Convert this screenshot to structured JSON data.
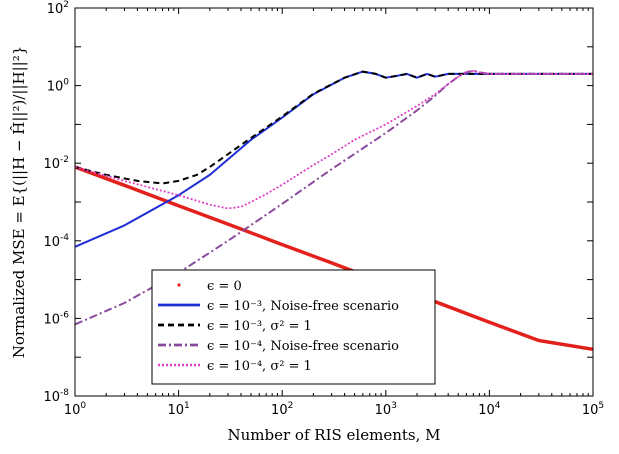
{
  "chart_data": {
    "type": "line",
    "xlabel": "Number of RIS elements, M",
    "ylabel": "Normalized MSE = E{(||H − Ĥ||²)/||H||²}",
    "xscale": "log",
    "yscale": "log",
    "xlim": [
      1,
      100000
    ],
    "ylim": [
      1e-08,
      100
    ],
    "grid": false,
    "legend_position": "bottom-center",
    "x_ticks": [
      {
        "base": "10",
        "exp": "0",
        "value": 1
      },
      {
        "base": "10",
        "exp": "1",
        "value": 10
      },
      {
        "base": "10",
        "exp": "2",
        "value": 100
      },
      {
        "base": "10",
        "exp": "3",
        "value": 1000
      },
      {
        "base": "10",
        "exp": "4",
        "value": 10000
      },
      {
        "base": "10",
        "exp": "5",
        "value": 100000
      }
    ],
    "y_ticks": [
      {
        "base": "10",
        "exp": "-8",
        "value": 1e-08
      },
      {
        "base": "10",
        "exp": "-6",
        "value": 1e-06
      },
      {
        "base": "10",
        "exp": "-4",
        "value": 0.0001
      },
      {
        "base": "10",
        "exp": "-2",
        "value": 0.01
      },
      {
        "base": "10",
        "exp": "0",
        "value": 1
      },
      {
        "base": "10",
        "exp": "2",
        "value": 100
      }
    ],
    "series": [
      {
        "name": "ϵ = 0",
        "color": "#e3201b",
        "style": "dotted-thick",
        "points": [
          [
            1,
            0.008
          ],
          [
            3,
            0.0027
          ],
          [
            10,
            0.0008
          ],
          [
            30,
            0.00027
          ],
          [
            100,
            8e-05
          ],
          [
            300,
            2.7e-05
          ],
          [
            1000,
            8e-06
          ],
          [
            3000,
            2.7e-06
          ],
          [
            10000,
            8e-07
          ],
          [
            30000,
            2.7e-07
          ],
          [
            100000,
            1.6e-07
          ]
        ]
      },
      {
        "name": "ϵ = 10⁻³, Noise-free scenario",
        "color": "#1f2fd6",
        "style": "solid",
        "points": [
          [
            1,
            7e-05
          ],
          [
            3,
            0.00025
          ],
          [
            10,
            0.0015
          ],
          [
            20,
            0.005
          ],
          [
            50,
            0.04
          ],
          [
            100,
            0.15
          ],
          [
            200,
            0.6
          ],
          [
            400,
            1.6
          ],
          [
            600,
            2.3
          ],
          [
            800,
            2.0
          ],
          [
            1000,
            1.6
          ],
          [
            1300,
            1.8
          ],
          [
            1600,
            2.0
          ],
          [
            2000,
            1.6
          ],
          [
            2500,
            2.0
          ],
          [
            3000,
            1.7
          ],
          [
            4000,
            2.0
          ],
          [
            6000,
            2.0
          ],
          [
            10000,
            2.0
          ],
          [
            100000,
            2.0
          ]
        ]
      },
      {
        "name": "ϵ = 10⁻³, σ² = 1",
        "color": "#000000",
        "style": "dashed",
        "points": [
          [
            1,
            0.008
          ],
          [
            2,
            0.005
          ],
          [
            4,
            0.0035
          ],
          [
            7,
            0.003
          ],
          [
            10,
            0.0035
          ],
          [
            15,
            0.005
          ],
          [
            20,
            0.008
          ],
          [
            50,
            0.045
          ],
          [
            100,
            0.16
          ],
          [
            200,
            0.62
          ],
          [
            400,
            1.6
          ],
          [
            600,
            2.3
          ],
          [
            800,
            2.0
          ],
          [
            1000,
            1.6
          ],
          [
            1300,
            1.8
          ],
          [
            1600,
            2.0
          ],
          [
            2000,
            1.6
          ],
          [
            2500,
            2.0
          ],
          [
            3000,
            1.7
          ],
          [
            4000,
            2.0
          ],
          [
            10000,
            2.0
          ],
          [
            100000,
            2.0
          ]
        ]
      },
      {
        "name": "ϵ = 10⁻⁴, Noise-free scenario",
        "color": "#8a4a9c",
        "style": "dashdot",
        "points": [
          [
            1,
            7e-07
          ],
          [
            3,
            2.5e-06
          ],
          [
            10,
            1.5e-05
          ],
          [
            30,
            0.0001
          ],
          [
            100,
            0.0009
          ],
          [
            300,
            0.007
          ],
          [
            1000,
            0.06
          ],
          [
            2000,
            0.23
          ],
          [
            3000,
            0.55
          ],
          [
            4000,
            1.1
          ],
          [
            5000,
            1.7
          ],
          [
            6000,
            2.2
          ],
          [
            7000,
            2.4
          ],
          [
            8000,
            2.2
          ],
          [
            10000,
            2.0
          ],
          [
            100000,
            2.0
          ]
        ]
      },
      {
        "name": "ϵ = 10⁻⁴, σ² = 1",
        "color": "#e040c8",
        "style": "dotted",
        "points": [
          [
            1,
            0.008
          ],
          [
            3,
            0.0035
          ],
          [
            10,
            0.0015
          ],
          [
            20,
            0.00085
          ],
          [
            30,
            0.00068
          ],
          [
            40,
            0.00075
          ],
          [
            50,
            0.001
          ],
          [
            70,
            0.0016
          ],
          [
            100,
            0.0028
          ],
          [
            200,
            0.009
          ],
          [
            300,
            0.017
          ],
          [
            500,
            0.04
          ],
          [
            1000,
            0.1
          ],
          [
            2000,
            0.3
          ],
          [
            3000,
            0.6
          ],
          [
            4000,
            1.1
          ],
          [
            5000,
            1.7
          ],
          [
            6000,
            2.3
          ],
          [
            7000,
            2.4
          ],
          [
            8000,
            2.2
          ],
          [
            10000,
            2.0
          ],
          [
            100000,
            2.0
          ]
        ]
      }
    ]
  }
}
